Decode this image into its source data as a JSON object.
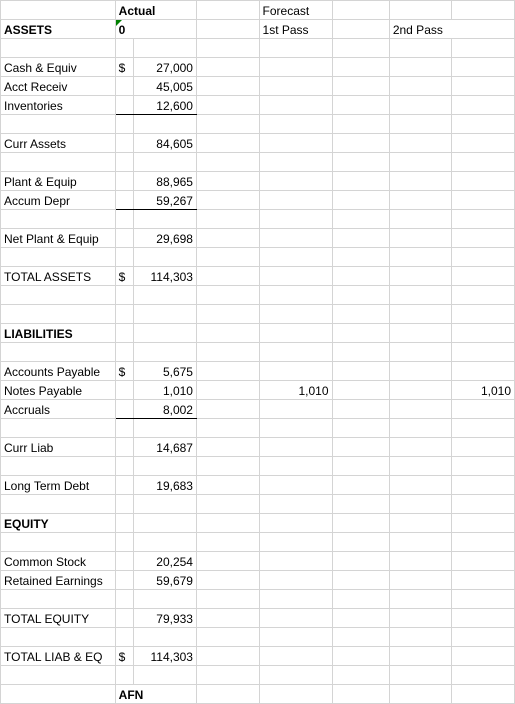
{
  "headers": {
    "actual": "Actual",
    "forecast": "Forecast",
    "actual_sub": "0",
    "first_pass": "1st Pass",
    "second_pass": "2nd Pass"
  },
  "sections": {
    "assets": "ASSETS",
    "liabilities": "LIABILITIES",
    "equity": "EQUITY",
    "afn": "AFN"
  },
  "rows": {
    "cash": {
      "label": "Cash & Equiv",
      "sym": "$",
      "val": "27,000"
    },
    "ar": {
      "label": "Acct Receiv",
      "val": "45,005"
    },
    "inv": {
      "label": "Inventories",
      "val": "12,600"
    },
    "curr_assets": {
      "label": "Curr Assets",
      "val": "84,605"
    },
    "pe": {
      "label": "Plant & Equip",
      "val": "88,965"
    },
    "depr": {
      "label": "Accum Depr",
      "val": "59,267"
    },
    "net_pe": {
      "label": "Net Plant & Equip",
      "val": "29,698"
    },
    "total_assets": {
      "label": "TOTAL ASSETS",
      "sym": "$",
      "val": "114,303"
    },
    "ap": {
      "label": "Accounts Payable",
      "sym": "$",
      "val": "5,675"
    },
    "np": {
      "label": "Notes Payable",
      "val": "1,010",
      "p1": "1,010",
      "p2": "1,010"
    },
    "accruals": {
      "label": "Accruals",
      "val": "8,002"
    },
    "curr_liab": {
      "label": "Curr Liab",
      "val": "14,687"
    },
    "ltd": {
      "label": "Long Term Debt",
      "val": "19,683"
    },
    "cs": {
      "label": "Common Stock",
      "val": "20,254"
    },
    "re": {
      "label": "Retained Earnings",
      "val": "59,679"
    },
    "total_eq": {
      "label": "TOTAL EQUITY",
      "val": "79,933"
    },
    "total_le": {
      "label": "TOTAL LIAB & EQ",
      "sym": "$",
      "val": "114,303"
    }
  },
  "colors": {
    "grid": "#d4d4d4",
    "text": "#000000",
    "bg": "#ffffff",
    "triangle": "#008000"
  }
}
